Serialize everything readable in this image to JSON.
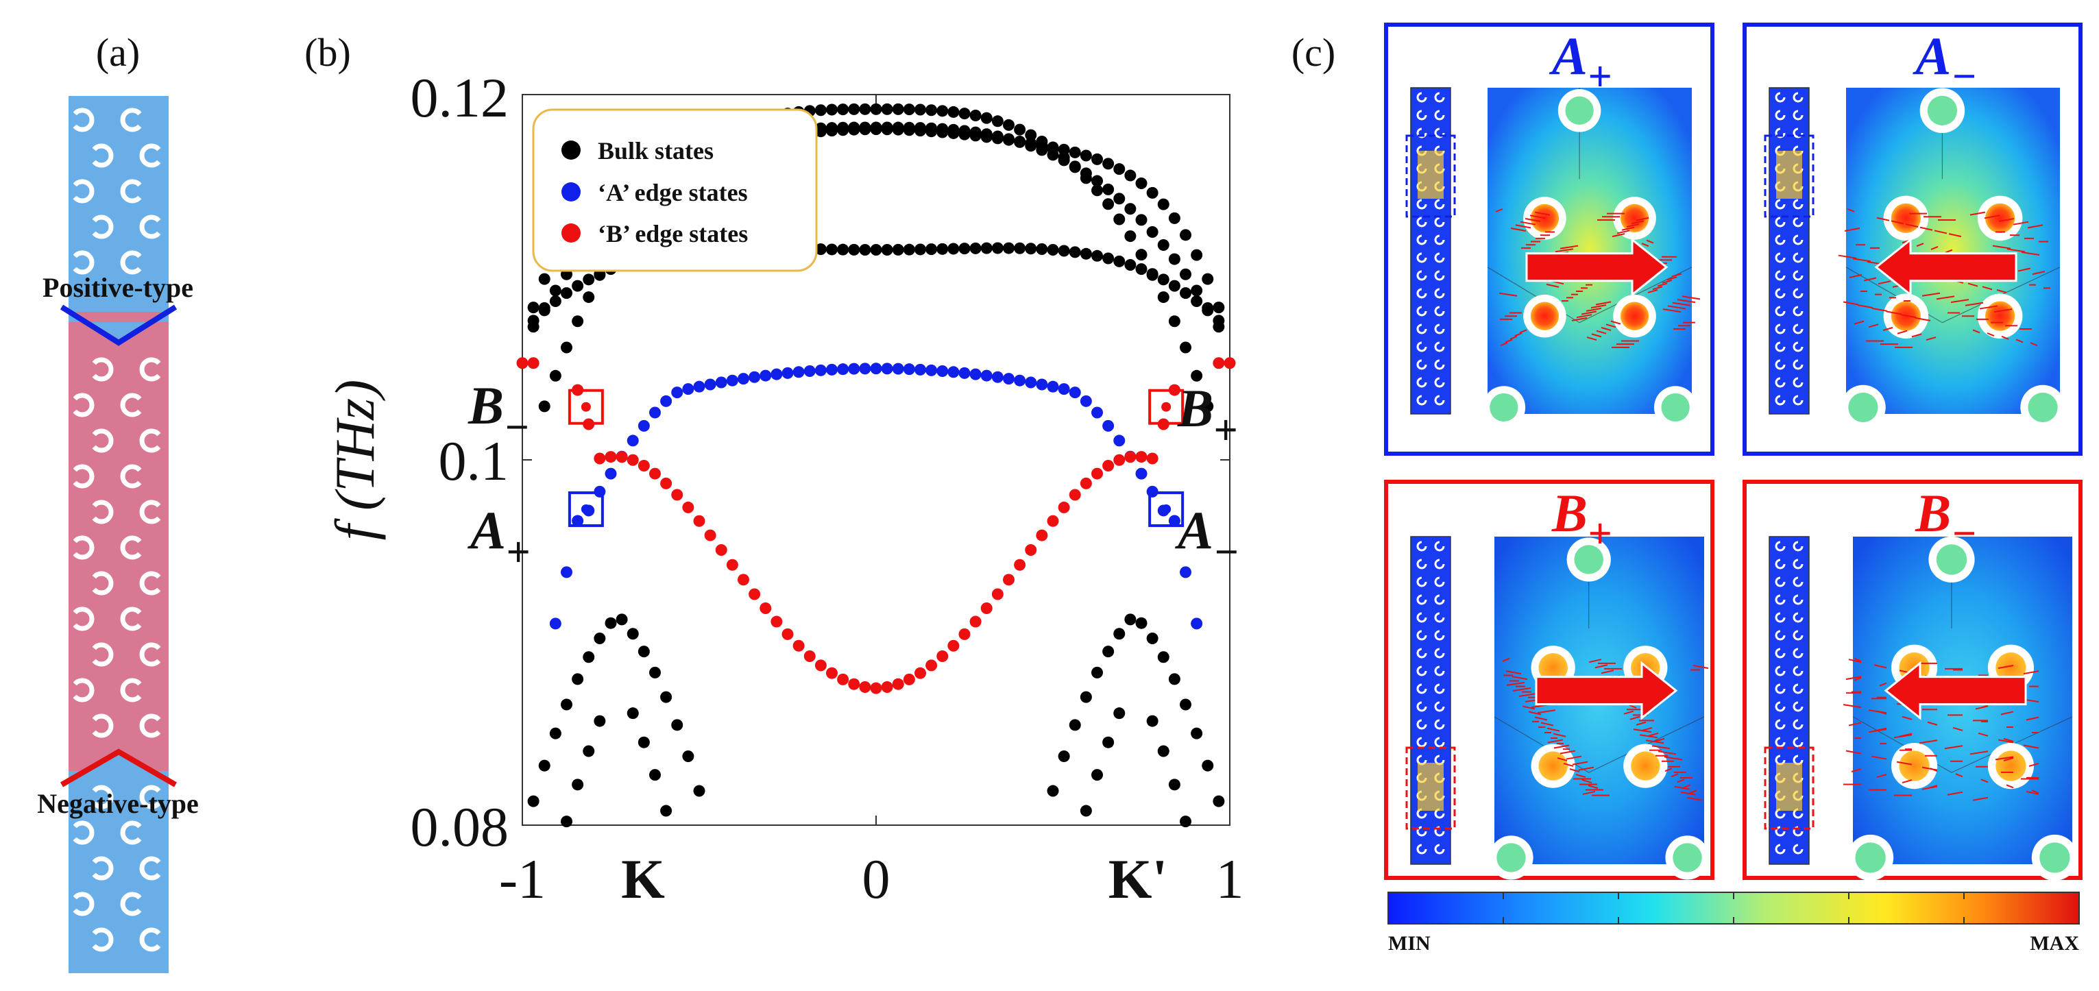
{
  "panel_labels": {
    "a": "(a)",
    "b": "(b)",
    "c": "(c)"
  },
  "panel_a": {
    "positive_label": "Positive-type",
    "negative_label": "Negative-type",
    "colors": {
      "top": "#6aaee8",
      "middle": "#d97892",
      "bottom": "#6aaee8",
      "positive": "#1020e0",
      "negative": "#e01010"
    }
  },
  "chart_data": {
    "type": "scatter",
    "title": "",
    "xlabel": "",
    "ylabel": "f (THz)",
    "xlim": [
      -1,
      1
    ],
    "ylim": [
      0.08,
      0.12
    ],
    "yticks": [
      "0.12",
      "0.1",
      "0.08"
    ],
    "xticks": [
      "-1",
      "0",
      "1"
    ],
    "special_xticks": [
      "K",
      "K'"
    ],
    "legend": [
      {
        "label": "Bulk states",
        "color": "#000000"
      },
      {
        "label": "‘A’ edge states",
        "color": "#1020e8"
      },
      {
        "label": "‘B’ edge states",
        "color": "#ee1010"
      }
    ],
    "annotations": {
      "b_minus": {
        "base": "B",
        "sub": "−",
        "color": "#ee1010"
      },
      "b_plus": {
        "base": "B",
        "sub": "+",
        "color": "#ee1010"
      },
      "a_plus": {
        "base": "A",
        "sub": "+",
        "color": "#1020e8"
      },
      "a_minus": {
        "base": "A",
        "sub": "−",
        "color": "#1020e8"
      }
    },
    "boxed_points": [
      {
        "name": "B−",
        "x": -0.82,
        "y": 0.1029
      },
      {
        "name": "B+",
        "x": 0.82,
        "y": 0.1029
      },
      {
        "name": "A+",
        "x": -0.82,
        "y": 0.0973
      },
      {
        "name": "A−",
        "x": 0.82,
        "y": 0.0973
      }
    ],
    "series": [
      {
        "name": "Bulk states",
        "desc": "upper bands (≈0.102–0.12 THz) and lower bands (≈0.08–0.0915 THz)"
      },
      {
        "name": "'A' edge states",
        "desc": "dome-shaped band, max ≈0.1050 at k=0, crossing 0.1 near ±0.77"
      },
      {
        "name": "'B' edge states",
        "desc": "bowl-shaped band, min ≈0.0875 at k=0, crossing 0.1 near ±0.77"
      }
    ]
  },
  "panel_c": {
    "modes": [
      {
        "base": "A",
        "sub": "+",
        "color": "#1020e8",
        "arrow": "right"
      },
      {
        "base": "A",
        "sub": "−",
        "color": "#1020e8",
        "arrow": "left"
      },
      {
        "base": "B",
        "sub": "+",
        "color": "#ee1010",
        "arrow": "right"
      },
      {
        "base": "B",
        "sub": "−",
        "color": "#ee1010",
        "arrow": "left"
      }
    ],
    "colorbar": {
      "min_label": "MIN",
      "max_label": "MAX"
    }
  }
}
